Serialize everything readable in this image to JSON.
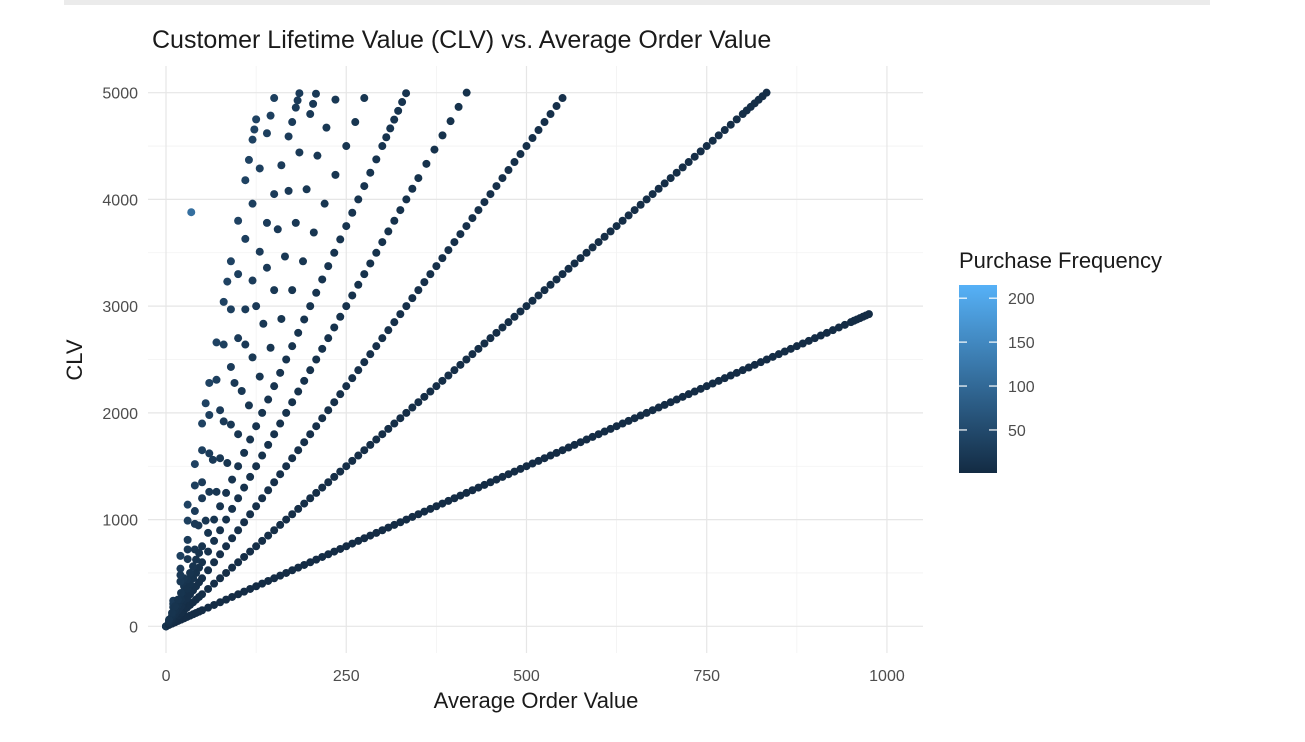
{
  "chart_data": {
    "type": "scatter",
    "title": "Customer Lifetime Value (CLV) vs. Average Order Value",
    "xlabel": "Average Order Value",
    "ylabel": "CLV",
    "xlim": [
      -25,
      1050
    ],
    "ylim": [
      -250,
      5250
    ],
    "x_ticks": [
      0,
      250,
      500,
      750,
      1000
    ],
    "y_ticks": [
      0,
      1000,
      2000,
      3000,
      4000,
      5000
    ],
    "x_tick_labels": [
      "0",
      "250",
      "500",
      "750",
      "1000"
    ],
    "y_tick_labels": [
      "0",
      "1000",
      "2000",
      "3000",
      "4000",
      "5000"
    ],
    "grid": true,
    "theme": "minimal",
    "point_color": "#1c3650",
    "legend": {
      "title": "Purchase Frequency",
      "placement": "right",
      "type": "colorbar",
      "min": 1,
      "max": 215,
      "breaks": [
        50,
        100,
        150,
        200
      ],
      "break_labels": [
        "50",
        "100",
        "150",
        "200"
      ],
      "low_color": "#132b43",
      "high_color": "#56b1f7"
    },
    "series": [
      {
        "purchase_frequency": 3,
        "x": [
          0,
          25,
          50,
          100,
          150,
          200,
          250,
          300,
          350,
          400,
          450,
          500,
          550,
          600,
          650,
          700,
          750,
          800,
          850,
          900,
          950,
          975
        ],
        "y": [
          0,
          75,
          150,
          300,
          450,
          600,
          750,
          900,
          1050,
          1200,
          1350,
          1500,
          1650,
          1800,
          1950,
          2100,
          2250,
          2400,
          2550,
          2700,
          2850,
          2925
        ]
      },
      {
        "purchase_frequency": 6,
        "x": [
          0,
          25,
          50,
          100,
          150,
          200,
          250,
          300,
          350,
          400,
          450,
          500,
          550,
          600,
          650,
          700,
          750,
          800,
          833
        ],
        "y": [
          0,
          150,
          300,
          600,
          900,
          1200,
          1500,
          1800,
          2100,
          2400,
          2700,
          3000,
          3300,
          3600,
          3900,
          4200,
          4500,
          4800,
          5000
        ]
      },
      {
        "purchase_frequency": 9,
        "x": [
          0,
          25,
          50,
          100,
          150,
          200,
          250,
          300,
          350,
          400,
          450,
          500,
          550
        ],
        "y": [
          0,
          225,
          450,
          900,
          1350,
          1800,
          2250,
          2700,
          3150,
          3600,
          4050,
          4500,
          4950
        ]
      },
      {
        "purchase_frequency": 12,
        "x": [
          0,
          25,
          50,
          100,
          150,
          200,
          250,
          300,
          350,
          417
        ],
        "y": [
          0,
          300,
          600,
          1200,
          1800,
          2400,
          3000,
          3600,
          4200,
          5000
        ]
      },
      {
        "purchase_frequency": 15,
        "x": [
          0,
          25,
          50,
          100,
          150,
          200,
          250,
          300,
          333
        ],
        "y": [
          0,
          375,
          750,
          1500,
          2250,
          3000,
          3750,
          4500,
          4995
        ]
      },
      {
        "purchase_frequency": 18,
        "x": [
          10,
          40,
          70,
          100,
          130,
          160,
          190,
          220,
          250,
          275
        ],
        "y": [
          180,
          720,
          1260,
          1800,
          2340,
          2880,
          3420,
          3960,
          4500,
          4950
        ]
      },
      {
        "purchase_frequency": 21,
        "x": [
          10,
          30,
          60,
          90,
          120,
          150,
          180,
          210,
          235
        ],
        "y": [
          210,
          630,
          1260,
          1890,
          2520,
          3150,
          3780,
          4410,
          4935
        ]
      },
      {
        "purchase_frequency": 24,
        "x": [
          10,
          30,
          50,
          80,
          110,
          140,
          170,
          200,
          208
        ],
        "y": [
          240,
          720,
          1200,
          1920,
          2640,
          3360,
          4080,
          4800,
          4990
        ]
      },
      {
        "purchase_frequency": 27,
        "x": [
          20,
          40,
          60,
          90,
          110,
          130,
          150,
          170,
          180,
          185
        ],
        "y": [
          540,
          1080,
          1620,
          2430,
          2970,
          3510,
          4050,
          4590,
          4860,
          4995
        ]
      },
      {
        "purchase_frequency": 33,
        "x": [
          20,
          40,
          60,
          80,
          100,
          120,
          140,
          150
        ],
        "y": [
          660,
          1320,
          1980,
          2640,
          3300,
          3960,
          4620,
          4950
        ]
      },
      {
        "purchase_frequency": 38,
        "x": [
          30,
          50,
          60,
          80,
          90,
          110,
          120,
          125
        ],
        "y": [
          1140,
          1900,
          2280,
          3040,
          3420,
          4180,
          4560,
          4750
        ]
      },
      {
        "purchase_frequency": 110,
        "x": [
          35
        ],
        "y": [
          3880
        ]
      }
    ]
  }
}
